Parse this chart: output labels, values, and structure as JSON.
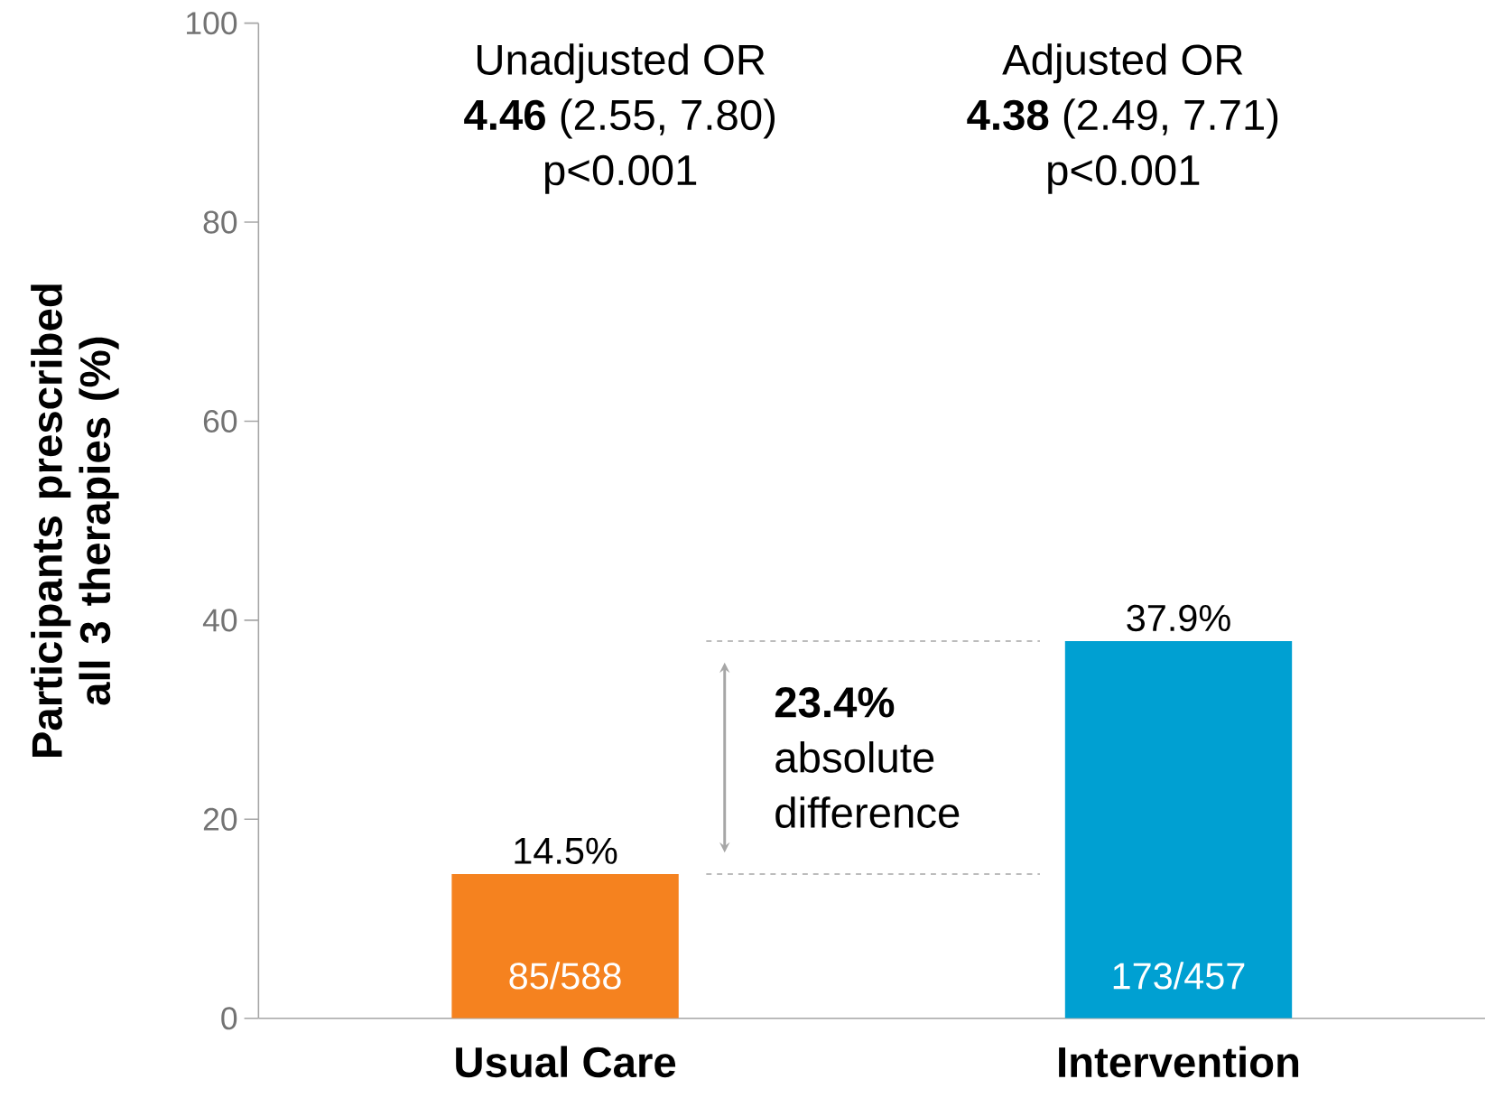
{
  "chart_data": {
    "type": "bar",
    "categories": [
      "Usual Care",
      "Intervention"
    ],
    "values": [
      14.5,
      37.9
    ],
    "colors": [
      "#f5821f",
      "#00a0d2"
    ],
    "value_labels": [
      "14.5%",
      "37.9%"
    ],
    "ylabel": "Participants prescribed all 3 therapies (%)",
    "ylim": [
      0,
      100
    ],
    "yticks": [
      0,
      20,
      40,
      60,
      80,
      100
    ],
    "ref_lines": [
      {
        "axis": "y",
        "value": 37.9,
        "color": "#a6a6a6",
        "line_style": "dashed"
      },
      {
        "axis": "y",
        "value": 14.5,
        "color": "#a6a6a6",
        "line_style": "dashed"
      }
    ],
    "annotations": [
      "Unadjusted OR",
      "**4.46** (2.55, 7.80)",
      "p<0.001",
      "Adjusted OR",
      "**4.38** (2.49, 7.71)",
      "p<0.001",
      "**23.4%** absolute difference",
      "85/588",
      "173/457"
    ]
  }
}
